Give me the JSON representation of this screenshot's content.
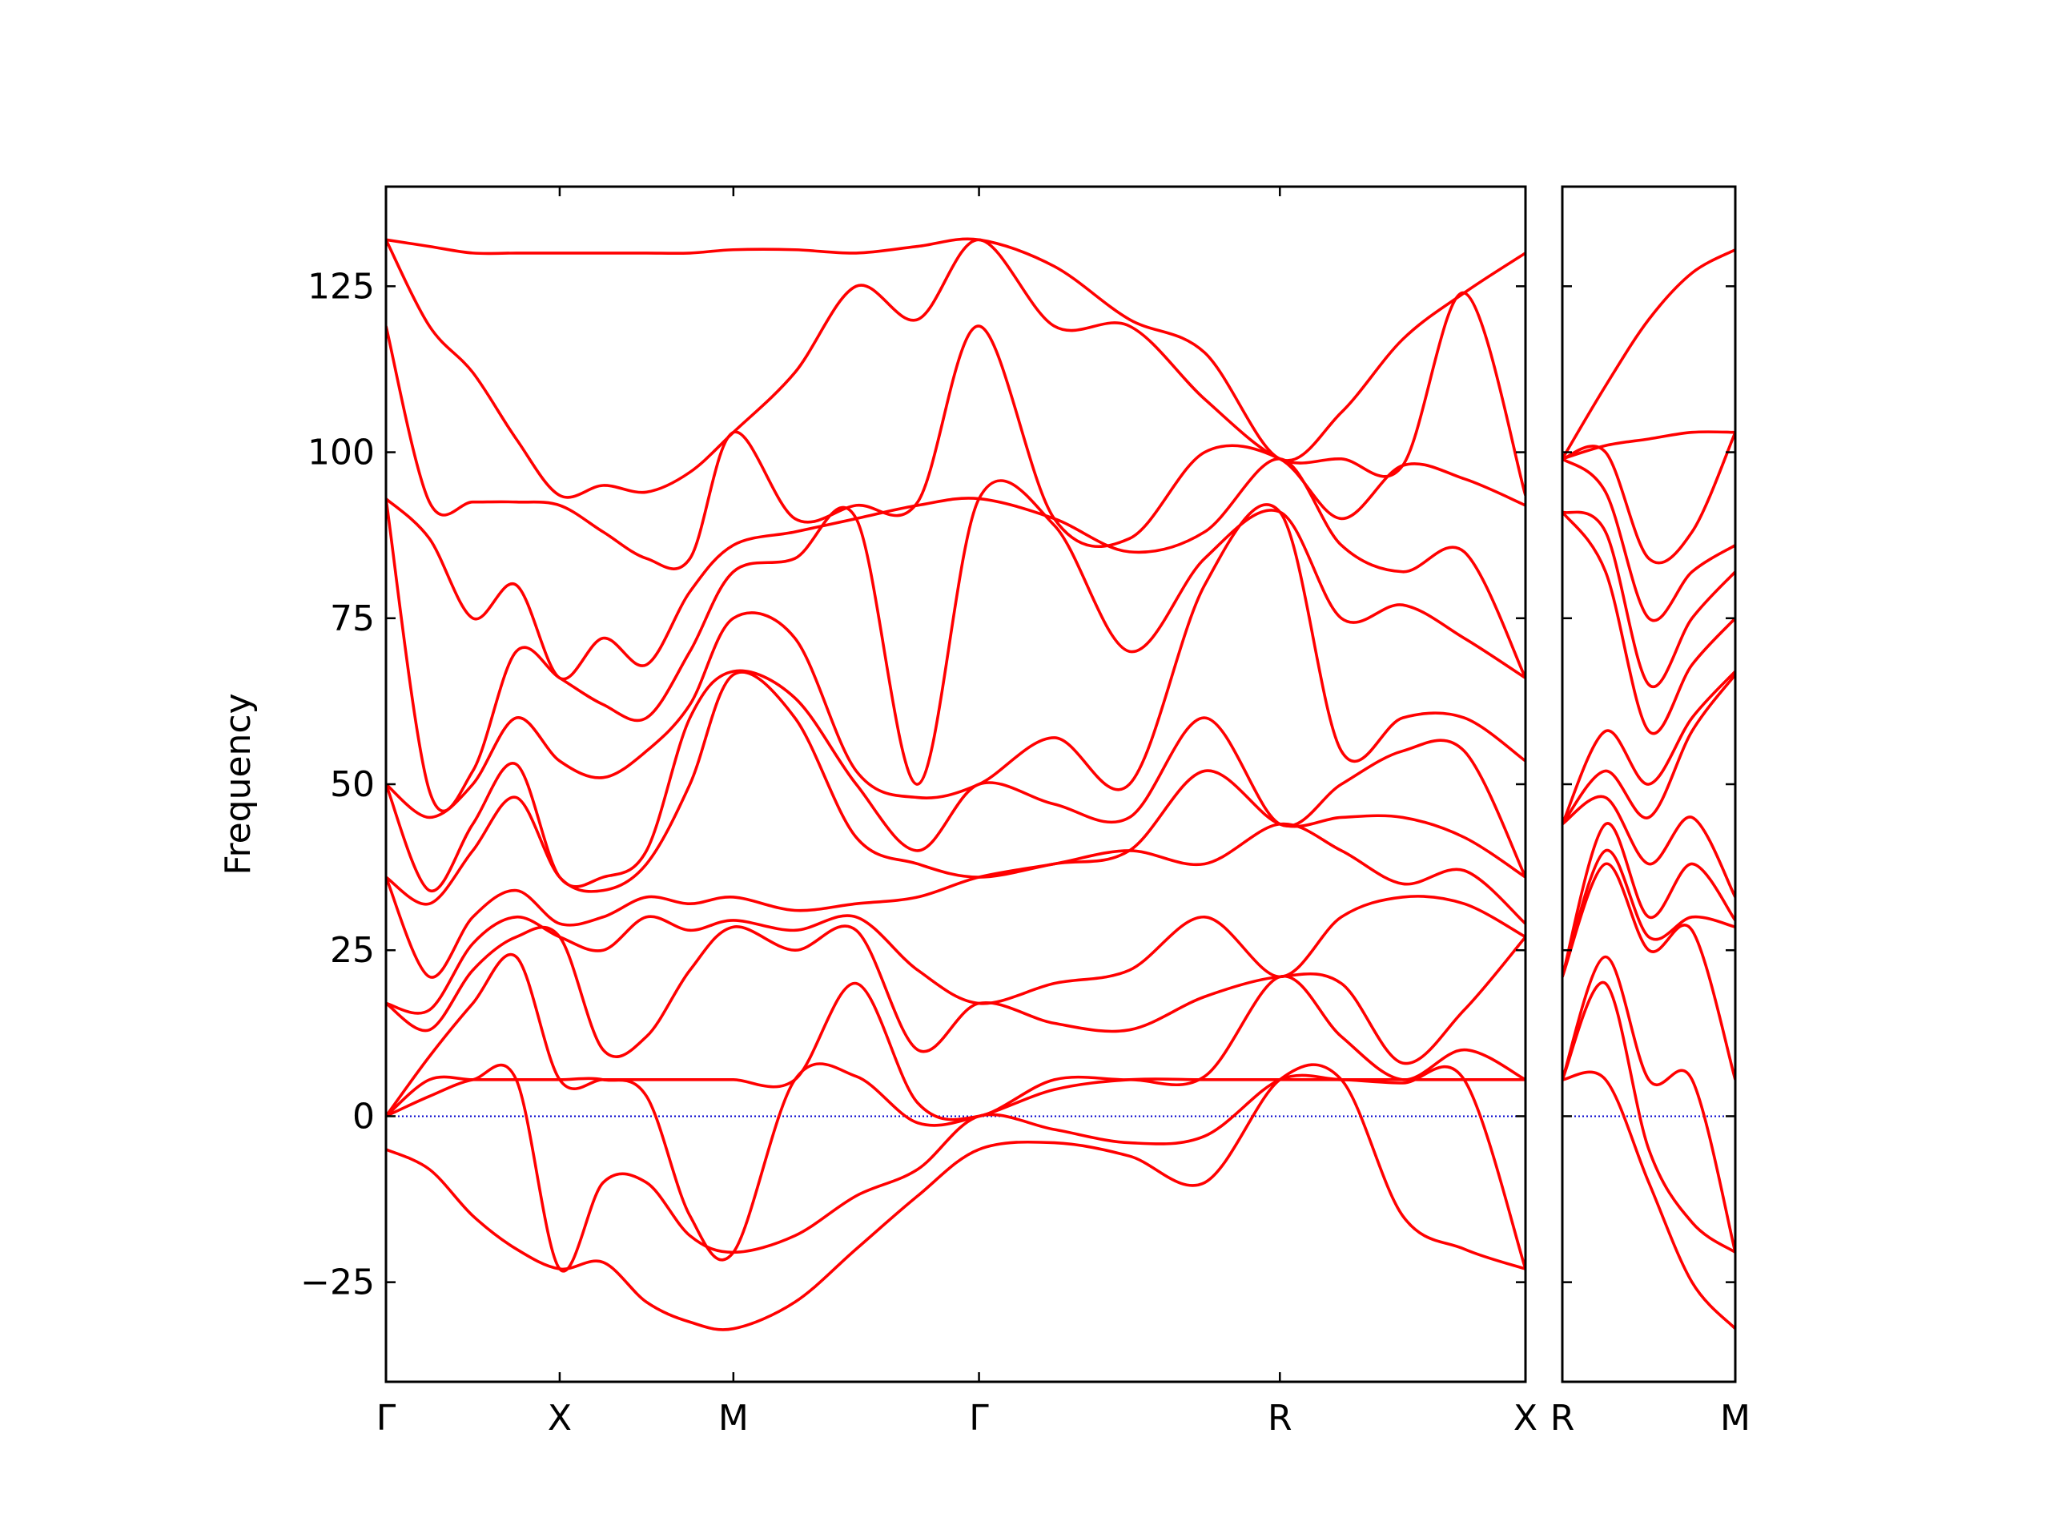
{
  "chart_data": [
    {
      "type": "line",
      "ylabel": "Frequency",
      "ytick_labels": true,
      "x": [
        0,
        0.25,
        0.5,
        0.75,
        1,
        1.25,
        1.5,
        1.75,
        2,
        2.354,
        2.707,
        3.061,
        3.414,
        3.847,
        4.28,
        4.713,
        5.146,
        5.5,
        5.853,
        6.207,
        6.56
      ],
      "xlim": [
        0,
        6.56
      ],
      "xticks": [
        {
          "value": 0,
          "label": "Γ"
        },
        {
          "value": 1,
          "label": "X"
        },
        {
          "value": 2,
          "label": "M"
        },
        {
          "value": 3.414,
          "label": "Γ"
        },
        {
          "value": 5.146,
          "label": "R"
        },
        {
          "value": 6.56,
          "label": "X"
        }
      ],
      "ylim": [
        -40,
        140
      ],
      "yticks": [
        {
          "value": -25,
          "label": "−25"
        },
        0,
        25,
        50,
        75,
        100,
        125
      ],
      "hline": {
        "value": 0,
        "color": "#0000cc",
        "style": "dotted"
      },
      "series": [
        {
          "color": "#ff0000",
          "values": [
            -5,
            -8,
            -15,
            -20,
            -23,
            -22,
            -28,
            -31,
            -32,
            -28,
            -20,
            -12,
            -5,
            -4,
            -6,
            -10,
            5.5,
            5.5,
            -15,
            -20,
            -23
          ]
        },
        {
          "color": "#ff0000",
          "values": [
            0,
            3,
            5.5,
            5.5,
            -23,
            -10,
            -10,
            -18,
            -20.5,
            -18,
            -12,
            -8,
            0,
            -2,
            -4,
            -3,
            5.5,
            5.5,
            5,
            5.5,
            -23
          ]
        },
        {
          "color": "#ff0000",
          "values": [
            0,
            5.5,
            5.5,
            5.5,
            5.5,
            5.5,
            3,
            -15,
            -20.5,
            5.5,
            6,
            -1,
            0,
            4,
            5.5,
            5.5,
            5.5,
            5.5,
            5.5,
            5.5,
            5.5
          ]
        },
        {
          "color": "#ff0000",
          "values": [
            0,
            9,
            17,
            24,
            5.5,
            5.5,
            5.5,
            5.5,
            5.5,
            5.5,
            20,
            2,
            0,
            5.5,
            5.5,
            6,
            21,
            12,
            5.5,
            10,
            5.5
          ]
        },
        {
          "color": "#ff0000",
          "values": [
            17,
            13,
            22,
            27,
            27,
            10,
            12,
            22,
            28.5,
            25,
            28,
            10,
            17,
            14,
            13,
            18,
            21,
            20,
            8,
            16,
            27
          ]
        },
        {
          "color": "#ff0000",
          "values": [
            17,
            16,
            26,
            30,
            27,
            25,
            30,
            28,
            29.5,
            28,
            30,
            22,
            17,
            20,
            22,
            30,
            21,
            30,
            33,
            32,
            27
          ]
        },
        {
          "color": "#ff0000",
          "values": [
            36,
            21,
            30,
            34,
            29,
            30,
            33,
            32,
            33,
            31,
            32,
            33,
            36,
            38,
            40,
            38,
            44,
            40,
            35,
            37,
            29
          ]
        },
        {
          "color": "#ff0000",
          "values": [
            36,
            32,
            40,
            48,
            36,
            34,
            38,
            50,
            66.5,
            60,
            42,
            38,
            36,
            38,
            40,
            52,
            44,
            45,
            45,
            42,
            36
          ]
        },
        {
          "color": "#ff0000",
          "values": [
            50,
            34,
            44,
            53,
            36,
            36,
            40,
            60,
            67,
            63,
            50,
            40,
            50,
            47,
            45,
            60,
            44,
            50,
            55,
            55,
            36
          ]
        },
        {
          "color": "#ff0000",
          "values": [
            50,
            45,
            50,
            60,
            53.5,
            51,
            55,
            62,
            75,
            72,
            52,
            48,
            50,
            57,
            50,
            80,
            91,
            55,
            60,
            60,
            53.5
          ]
        },
        {
          "color": "#ff0000",
          "values": [
            93,
            49,
            52,
            70,
            66,
            62,
            60,
            70,
            82,
            84,
            90,
            50,
            93,
            89,
            70,
            84,
            91,
            75,
            77,
            72,
            66
          ]
        },
        {
          "color": "#ff0000",
          "values": [
            93,
            87,
            75,
            80,
            66,
            72,
            68,
            79,
            86,
            88,
            90,
            92,
            93,
            90,
            85,
            88,
            99,
            86,
            82,
            85,
            66
          ]
        },
        {
          "color": "#ff0000",
          "values": [
            119,
            92.5,
            92.5,
            92.5,
            92,
            88,
            84,
            84,
            103,
            90,
            92,
            92.5,
            119,
            90,
            87,
            100,
            99,
            90,
            98,
            96,
            92
          ]
        },
        {
          "color": "#ff0000",
          "values": [
            132,
            119,
            112,
            102,
            93.5,
            95,
            94,
            97,
            103,
            112,
            125,
            120,
            132,
            119,
            119,
            108,
            99,
            99,
            98,
            124,
            93.5
          ]
        },
        {
          "color": "#ff0000",
          "values": [
            132,
            131,
            130,
            130,
            130,
            130,
            130,
            130,
            130.5,
            130.5,
            130,
            131,
            132,
            128,
            120,
            115,
            99,
            106,
            117,
            124,
            130
          ]
        }
      ]
    },
    {
      "type": "line",
      "ytick_labels": false,
      "x": [
        0,
        0.25,
        0.5,
        0.75,
        1
      ],
      "xlim": [
        0,
        1
      ],
      "xticks": [
        {
          "value": 0,
          "label": "R"
        },
        {
          "value": 1,
          "label": "M"
        }
      ],
      "ylim": [
        -40,
        140
      ],
      "yticks": [
        -25,
        0,
        25,
        50,
        75,
        100,
        125
      ],
      "hline": {
        "value": 0,
        "color": "#0000cc",
        "style": "dotted"
      },
      "series": [
        {
          "color": "#ff0000",
          "values": [
            5.5,
            5.5,
            -10,
            -25,
            -32
          ]
        },
        {
          "color": "#ff0000",
          "values": [
            5.5,
            20,
            -5,
            -16,
            -20.5
          ]
        },
        {
          "color": "#ff0000",
          "values": [
            5.5,
            24,
            5.5,
            5.5,
            -20.5
          ]
        },
        {
          "color": "#ff0000",
          "values": [
            21,
            38,
            25,
            28,
            5.5
          ]
        },
        {
          "color": "#ff0000",
          "values": [
            21,
            40,
            27,
            30,
            28.5
          ]
        },
        {
          "color": "#ff0000",
          "values": [
            21,
            44,
            30,
            38,
            29.5
          ]
        },
        {
          "color": "#ff0000",
          "values": [
            44,
            48,
            38,
            45,
            33
          ]
        },
        {
          "color": "#ff0000",
          "values": [
            44,
            52,
            45,
            58,
            66.5
          ]
        },
        {
          "color": "#ff0000",
          "values": [
            44,
            58,
            50,
            60,
            67
          ]
        },
        {
          "color": "#ff0000",
          "values": [
            91,
            82,
            58,
            68,
            75
          ]
        },
        {
          "color": "#ff0000",
          "values": [
            91,
            88,
            65,
            75,
            82
          ]
        },
        {
          "color": "#ff0000",
          "values": [
            99,
            94,
            75,
            82,
            86
          ]
        },
        {
          "color": "#ff0000",
          "values": [
            99,
            100,
            84,
            88,
            103
          ]
        },
        {
          "color": "#ff0000",
          "values": [
            99,
            101,
            102,
            103,
            103
          ]
        },
        {
          "color": "#ff0000",
          "values": [
            99,
            110,
            120,
            127,
            130.5
          ]
        }
      ]
    }
  ]
}
